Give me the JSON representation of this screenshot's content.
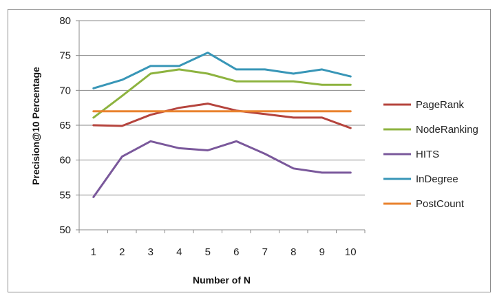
{
  "chart_data": {
    "type": "line",
    "x": [
      1,
      2,
      3,
      4,
      5,
      6,
      7,
      8,
      9,
      10
    ],
    "xlabel": "Number of N",
    "ylabel": "Precision@10 Percentage",
    "ylim": [
      50,
      80
    ],
    "yticks": [
      50,
      55,
      60,
      65,
      70,
      75,
      80
    ],
    "grid": "horizontal",
    "legend_position": "right",
    "series": [
      {
        "name": "PageRank",
        "color": "#b5443d",
        "values": [
          65.0,
          64.9,
          66.5,
          67.5,
          68.1,
          67.1,
          66.6,
          66.1,
          66.1,
          64.6
        ]
      },
      {
        "name": "NodeRanking",
        "color": "#8db33f",
        "values": [
          66.1,
          69.2,
          72.4,
          73.0,
          72.4,
          71.3,
          71.3,
          71.3,
          70.8,
          70.8
        ]
      },
      {
        "name": "HITS",
        "color": "#7a589b",
        "values": [
          54.7,
          60.5,
          62.7,
          61.7,
          61.4,
          62.7,
          60.9,
          58.8,
          58.2,
          58.2
        ]
      },
      {
        "name": "InDegree",
        "color": "#3896b7",
        "values": [
          70.3,
          71.5,
          73.5,
          73.5,
          75.4,
          73.0,
          73.0,
          72.4,
          73.0,
          72.0
        ]
      },
      {
        "name": "PostCount",
        "color": "#e9822e",
        "values": [
          67.0,
          67.0,
          67.0,
          67.0,
          67.0,
          67.0,
          67.0,
          67.0,
          67.0,
          67.0
        ]
      }
    ]
  }
}
